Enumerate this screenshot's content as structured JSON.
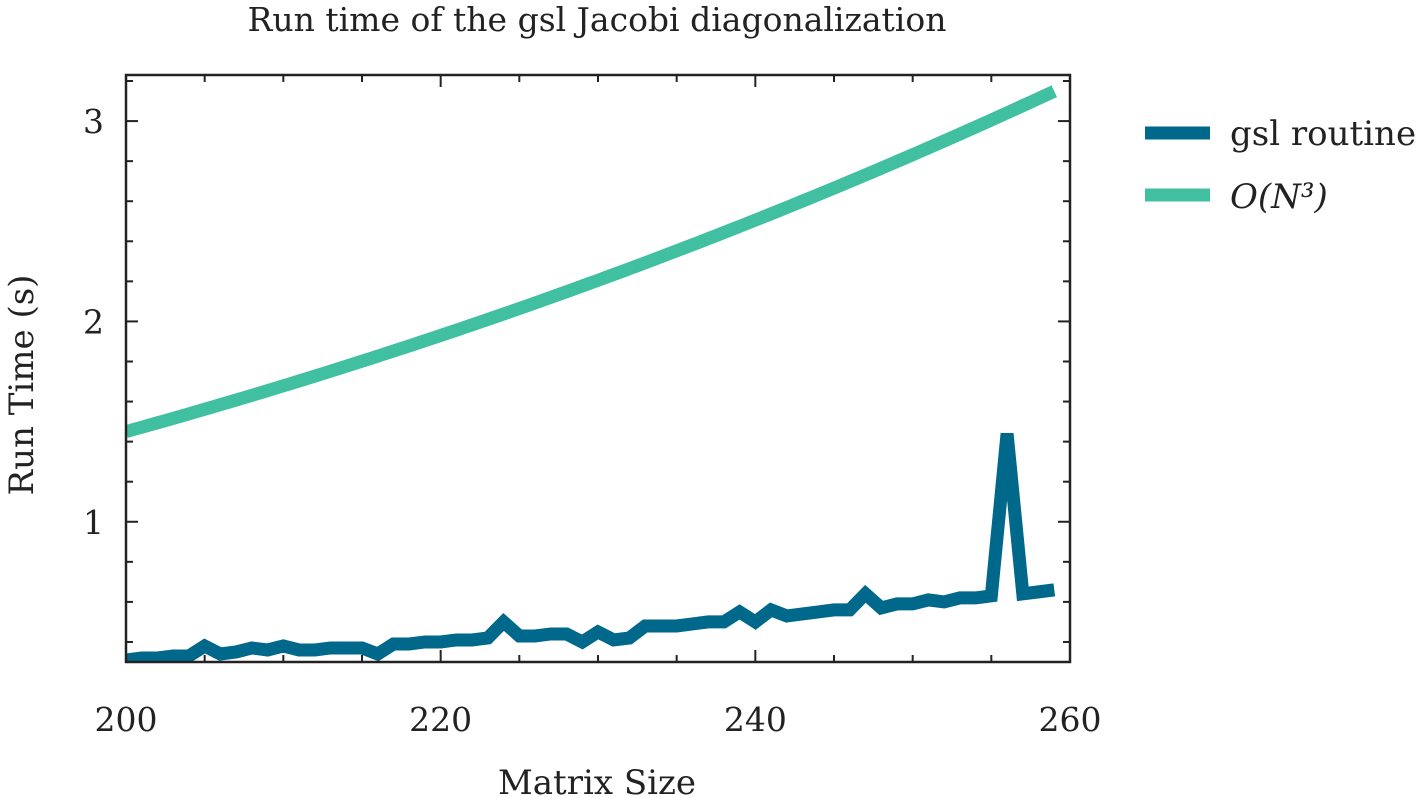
{
  "chart_data": {
    "type": "line",
    "title": "Run time of the gsl Jacobi diagonalization",
    "xlabel": "Matrix Size",
    "ylabel": "Run Time (s)",
    "xlim": [
      200,
      260
    ],
    "ylim": [
      0.3,
      3.23
    ],
    "x_ticks": [
      200,
      220,
      240,
      260
    ],
    "y_ticks": [
      1,
      2,
      3
    ],
    "grid": false,
    "legend_position": "outside-right",
    "series": [
      {
        "name": "gsl routine",
        "color": "#00688b",
        "x": [
          200,
          201,
          202,
          203,
          204,
          205,
          206,
          207,
          208,
          209,
          210,
          211,
          212,
          213,
          214,
          215,
          216,
          217,
          218,
          219,
          220,
          221,
          222,
          223,
          224,
          225,
          226,
          227,
          228,
          229,
          230,
          231,
          232,
          233,
          234,
          235,
          236,
          237,
          238,
          239,
          240,
          241,
          242,
          243,
          244,
          245,
          246,
          247,
          248,
          249,
          250,
          251,
          252,
          253,
          254,
          255,
          256,
          257,
          258,
          259
        ],
        "values": [
          0.31,
          0.32,
          0.32,
          0.33,
          0.33,
          0.38,
          0.34,
          0.35,
          0.37,
          0.36,
          0.38,
          0.36,
          0.36,
          0.37,
          0.37,
          0.37,
          0.34,
          0.39,
          0.39,
          0.4,
          0.4,
          0.41,
          0.41,
          0.42,
          0.5,
          0.43,
          0.43,
          0.44,
          0.44,
          0.4,
          0.45,
          0.41,
          0.42,
          0.48,
          0.48,
          0.48,
          0.49,
          0.5,
          0.5,
          0.55,
          0.5,
          0.56,
          0.53,
          0.54,
          0.55,
          0.56,
          0.56,
          0.64,
          0.57,
          0.59,
          0.59,
          0.61,
          0.6,
          0.62,
          0.62,
          0.63,
          1.44,
          0.64,
          0.65,
          0.66
        ]
      },
      {
        "name": "O(N³)",
        "color": "#40c0a0",
        "x": [
          200,
          259
        ],
        "function": "cubic",
        "values": [
          1.45,
          3.12
        ]
      }
    ]
  },
  "legend": {
    "items": [
      {
        "label": "gsl routine",
        "color": "#00688b"
      },
      {
        "label": "O(N³)",
        "color": "#40c0a0"
      }
    ]
  }
}
